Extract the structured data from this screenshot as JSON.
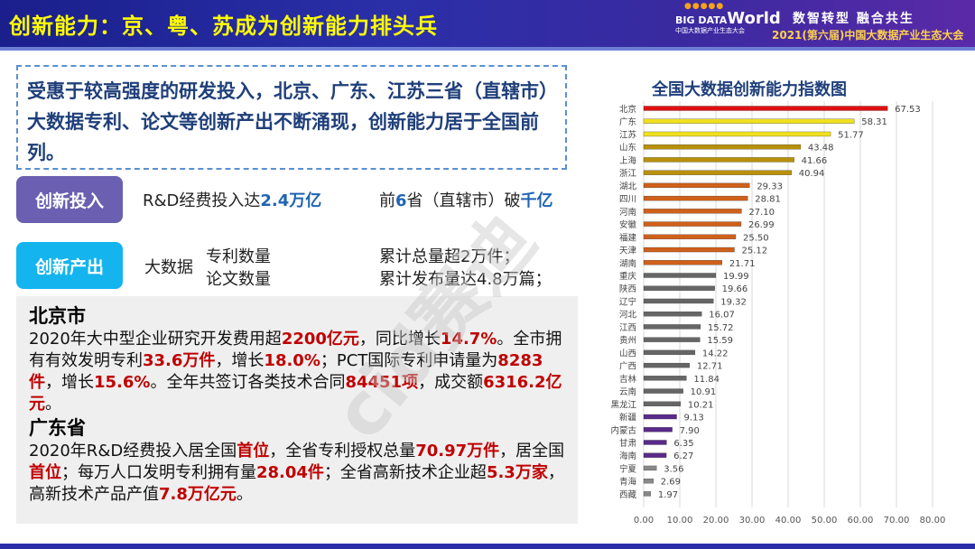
{
  "header": {
    "title": "创新能力：京、粤、苏成为创新能力排头兵",
    "logo_big": "BIG DATA",
    "logo_world": "World",
    "logo_sub": "中国大数据产业生态大会",
    "slogan": "数智转型  融合共生",
    "conference": "2021(第六届)中国大数据产业生态大会"
  },
  "intro": "受惠于较高强度的研发投入，北京、广东、江苏三省（直辖市）大数据专利、论文等创新产出不断涌现，创新能力居于全国前列。",
  "input": {
    "tag": "创新投入",
    "line1_prefix": "R&D经费投入达",
    "line1_value": "2.4万亿",
    "line2_a": "前",
    "line2_b": "6",
    "line2_c": "省（直辖市）破",
    "line2_d": "千亿"
  },
  "output": {
    "tag": "创新产出",
    "label": "大数据",
    "item1": "专利数量",
    "item2": "论文数量",
    "stat1": "累计总量超2万件；",
    "stat2": "累计发布量达4.8万篇；"
  },
  "detail": [
    {
      "heading": "北京市",
      "segments": [
        [
          "2020年大中型企业研究开发费用超",
          0
        ],
        [
          "2200亿元",
          1
        ],
        [
          "，同比增长",
          0
        ],
        [
          "14.7%",
          1
        ],
        [
          "。全市拥有有效发明专利",
          0
        ],
        [
          "33.6万件",
          1
        ],
        [
          "，增长",
          0
        ],
        [
          "18.0%",
          1
        ],
        [
          "；PCT国际专利申请量为",
          0
        ],
        [
          "8283件",
          1
        ],
        [
          "，增长",
          0
        ],
        [
          "15.6%",
          1
        ],
        [
          "。全年共签订各类技术合同",
          0
        ],
        [
          "84451项",
          1
        ],
        [
          "，成交额",
          0
        ],
        [
          "6316.2亿元",
          1
        ],
        [
          "。",
          0
        ]
      ]
    },
    {
      "heading": "广东省",
      "segments": [
        [
          "2020年R&D经费投入居全国",
          0
        ],
        [
          "首位",
          1
        ],
        [
          "，全省专利授权总量",
          0
        ],
        [
          "70.97万件",
          1
        ],
        [
          "，居全国",
          0
        ],
        [
          "首位",
          1
        ],
        [
          "；每万人口发明专利拥有量",
          0
        ],
        [
          "28.04件",
          1
        ],
        [
          "；全省高新技术企业超",
          0
        ],
        [
          "5.3万家",
          1
        ],
        [
          "，高新技术产品产值",
          0
        ],
        [
          "7.8万亿元",
          1
        ],
        [
          "。",
          0
        ]
      ]
    }
  ],
  "watermark": "cid赛迪",
  "chart_data": {
    "type": "bar",
    "orientation": "horizontal",
    "title": "全国大数据创新能力指数图",
    "categories": [
      "北京",
      "广东",
      "江苏",
      "山东",
      "上海",
      "浙江",
      "湖北",
      "四川",
      "河南",
      "安徽",
      "福建",
      "天津",
      "湖南",
      "重庆",
      "陕西",
      "辽宁",
      "河北",
      "江西",
      "贵州",
      "山西",
      "广西",
      "吉林",
      "云南",
      "黑龙江",
      "新疆",
      "内蒙古",
      "甘肃",
      "海南",
      "宁夏",
      "青海",
      "西藏"
    ],
    "values": [
      67.53,
      58.31,
      51.77,
      43.48,
      41.66,
      40.94,
      29.33,
      28.81,
      27.1,
      26.99,
      25.5,
      25.12,
      21.71,
      19.99,
      19.66,
      19.32,
      16.07,
      15.72,
      15.59,
      14.22,
      12.71,
      11.84,
      10.91,
      10.21,
      9.13,
      7.9,
      6.35,
      6.27,
      3.56,
      2.69,
      1.97
    ],
    "colors": [
      "#e01010",
      "#f0e020",
      "#f0e020",
      "#b8900a",
      "#b8900a",
      "#b8900a",
      "#d0601a",
      "#d0601a",
      "#d0601a",
      "#d0601a",
      "#d0601a",
      "#d0601a",
      "#d0601a",
      "#666666",
      "#666666",
      "#666666",
      "#666666",
      "#666666",
      "#666666",
      "#666666",
      "#666666",
      "#666666",
      "#666666",
      "#666666",
      "#5a2a8a",
      "#5a2a8a",
      "#5a2a8a",
      "#5a2a8a",
      "#888888",
      "#888888",
      "#888888"
    ],
    "xlim": [
      0,
      80
    ],
    "xticks": [
      "0.00",
      "10.00",
      "20.00",
      "30.00",
      "40.00",
      "50.00",
      "60.00",
      "70.00",
      "80.00"
    ],
    "grid": true,
    "legend": "none"
  }
}
